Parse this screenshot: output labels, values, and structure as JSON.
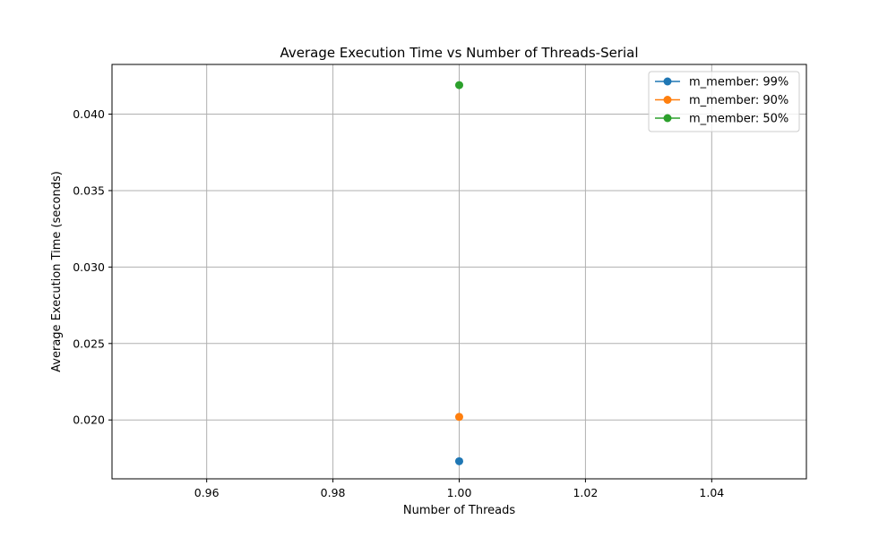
{
  "chart_data": {
    "type": "line",
    "title": "Average Execution Time vs Number of Threads-Serial",
    "xlabel": "Number of Threads",
    "ylabel": "Average Execution Time (seconds)",
    "xlim": [
      0.945,
      1.055
    ],
    "ylim": [
      0.01615,
      0.04325
    ],
    "x_ticks": [
      0.96,
      0.98,
      1.0,
      1.02,
      1.04
    ],
    "x_tick_labels": [
      "0.96",
      "0.98",
      "1.00",
      "1.02",
      "1.04"
    ],
    "y_ticks": [
      0.02,
      0.025,
      0.03,
      0.035,
      0.04
    ],
    "y_tick_labels": [
      "0.020",
      "0.025",
      "0.030",
      "0.035",
      "0.040"
    ],
    "grid": true,
    "legend_position": "top-right",
    "series": [
      {
        "name": "m_member: 99%",
        "color": "#1f77b4",
        "x": [
          1.0
        ],
        "y": [
          0.0173
        ]
      },
      {
        "name": "m_member: 90%",
        "color": "#ff7f0e",
        "x": [
          1.0
        ],
        "y": [
          0.0202
        ]
      },
      {
        "name": "m_member: 50%",
        "color": "#2ca02c",
        "x": [
          1.0
        ],
        "y": [
          0.0419
        ]
      }
    ]
  }
}
